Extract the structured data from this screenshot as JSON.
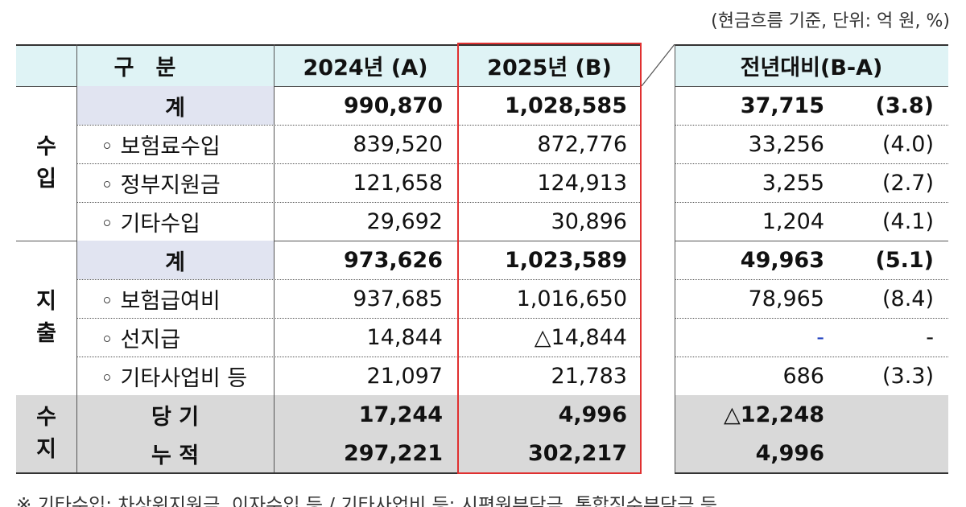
{
  "note": "(현금흐름 기준, 단위: 억 원, %)",
  "header": {
    "category": "구　분",
    "col_a": "2024년 (A)",
    "col_b": "2025년 (B)",
    "col_diff": "전년대비(B-A)"
  },
  "groups": [
    {
      "label": [
        "수",
        "입"
      ],
      "rows": [
        {
          "label": "계",
          "a": "990,870",
          "b": "1,028,585",
          "diff": "37,715",
          "pct": "(3.8)",
          "total": true
        },
        {
          "label": "◦ 보험료수입",
          "a": "839,520",
          "b": "872,776",
          "diff": "33,256",
          "pct": "(4.0)"
        },
        {
          "label": "◦ 정부지원금",
          "a": "121,658",
          "b": "124,913",
          "diff": "3,255",
          "pct": "(2.7)"
        },
        {
          "label": "◦ 기타수입",
          "a": "29,692",
          "b": "30,896",
          "diff": "1,204",
          "pct": "(4.1)"
        }
      ]
    },
    {
      "label": [
        "지",
        "출"
      ],
      "rows": [
        {
          "label": "계",
          "a": "973,626",
          "b": "1,023,589",
          "diff": "49,963",
          "pct": "(5.1)",
          "total": true
        },
        {
          "label": "◦ 보험급여비",
          "a": "937,685",
          "b": "1,016,650",
          "diff": "78,965",
          "pct": "(8.4)"
        },
        {
          "label": "◦ 선지급",
          "a": "14,844",
          "b": "△14,844",
          "diff": "-",
          "pct": "-"
        },
        {
          "label": "◦ 기타사업비 등",
          "a": "21,097",
          "b": "21,783",
          "diff": "686",
          "pct": "(3.3)"
        }
      ]
    },
    {
      "label": [
        "수",
        "지"
      ],
      "balance": true,
      "rows": [
        {
          "label": "당 기",
          "a": "17,244",
          "b": "4,996",
          "diff": "△12,248"
        },
        {
          "label": "누 적",
          "a": "297,221",
          "b": "302,217",
          "diff": "4,996"
        }
      ]
    }
  ],
  "footnote": "※ 기타수입: 차상위지원금, 이자수입 등 / 기타사업비 등: 시편원부담금, 통합징수부담금 등"
}
